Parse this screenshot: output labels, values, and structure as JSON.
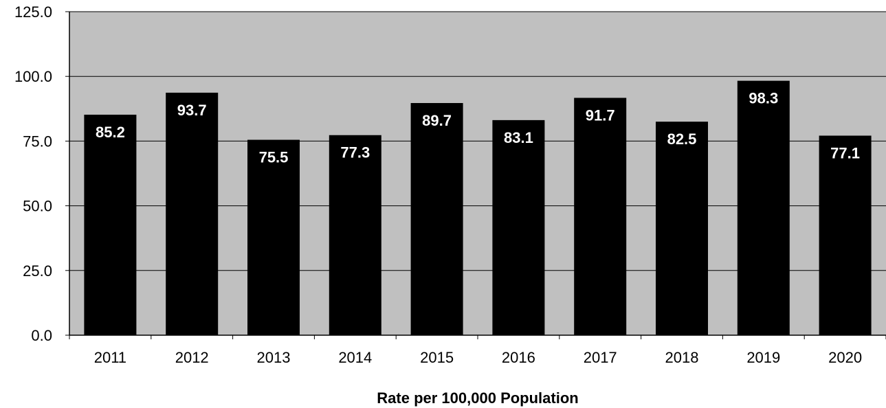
{
  "chart_data": {
    "type": "bar",
    "categories": [
      "2011",
      "2012",
      "2013",
      "2014",
      "2015",
      "2016",
      "2017",
      "2018",
      "2019",
      "2020"
    ],
    "values": [
      85.2,
      93.7,
      75.5,
      77.3,
      89.7,
      83.1,
      91.7,
      82.5,
      98.3,
      77.1
    ],
    "data_labels": [
      "85.2",
      "93.7",
      "75.5",
      "77.3",
      "89.7",
      "83.1",
      "91.7",
      "82.5",
      "98.3",
      "77.1"
    ],
    "title": "",
    "xlabel": "Rate per 100,000 Population",
    "ylabel": "",
    "ylim": [
      0,
      125
    ],
    "yticks": [
      0,
      25,
      50,
      75,
      100,
      125
    ],
    "ytick_labels": [
      "0.0",
      "25.0",
      "50.0",
      "75.0",
      "100.0",
      "125.0"
    ],
    "grid": true,
    "legend": "none",
    "colors": {
      "bar": "#000000",
      "plot_background": "#c0c0c0",
      "gridline": "#000000",
      "data_label": "#ffffff"
    }
  }
}
